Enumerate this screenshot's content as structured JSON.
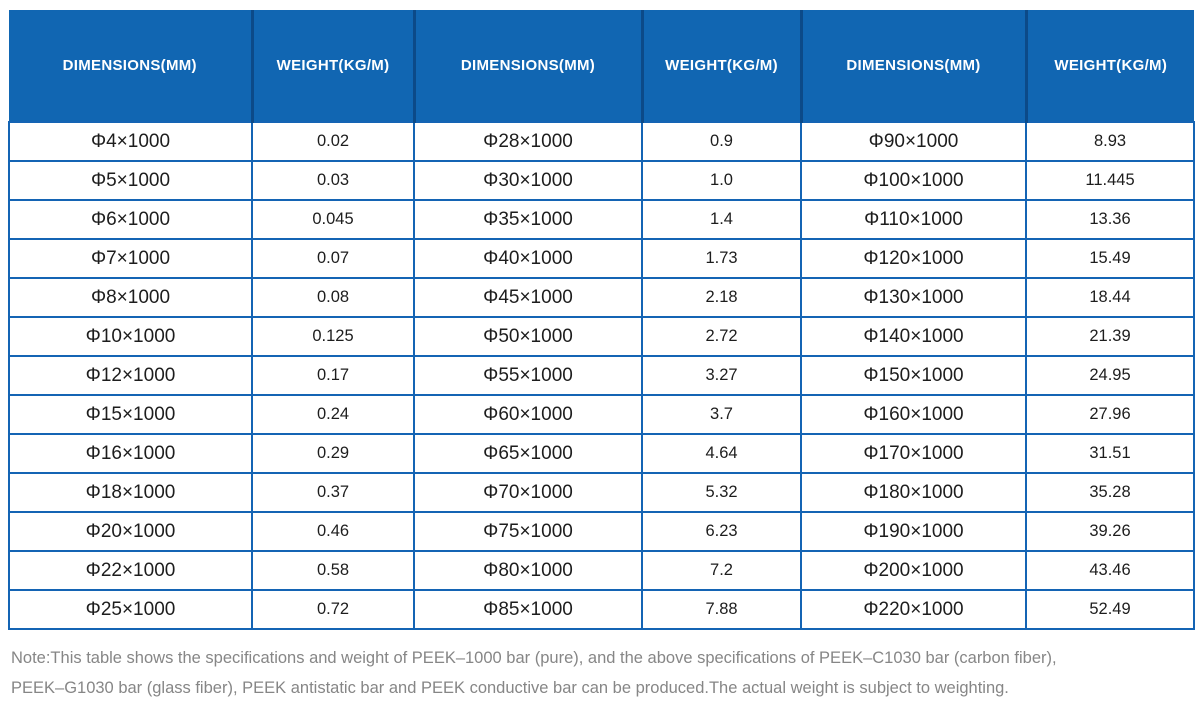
{
  "table": {
    "header": {
      "dimensions_label": "DIMENSIONS(MM)",
      "weight_label": "WEIGHT(KG/M)"
    },
    "rows": [
      [
        "Φ4×1000",
        "0.02",
        "Φ28×1000",
        "0.9",
        "Φ90×1000",
        "8.93"
      ],
      [
        "Φ5×1000",
        "0.03",
        "Φ30×1000",
        "1.0",
        "Φ100×1000",
        "11.445"
      ],
      [
        "Φ6×1000",
        "0.045",
        "Φ35×1000",
        "1.4",
        "Φ110×1000",
        "13.36"
      ],
      [
        "Φ7×1000",
        "0.07",
        "Φ40×1000",
        "1.73",
        "Φ120×1000",
        "15.49"
      ],
      [
        "Φ8×1000",
        "0.08",
        "Φ45×1000",
        "2.18",
        "Φ130×1000",
        "18.44"
      ],
      [
        "Φ10×1000",
        "0.125",
        "Φ50×1000",
        "2.72",
        "Φ140×1000",
        "21.39"
      ],
      [
        "Φ12×1000",
        "0.17",
        "Φ55×1000",
        "3.27",
        "Φ150×1000",
        "24.95"
      ],
      [
        "Φ15×1000",
        "0.24",
        "Φ60×1000",
        "3.7",
        "Φ160×1000",
        "27.96"
      ],
      [
        "Φ16×1000",
        "0.29",
        "Φ65×1000",
        "4.64",
        "Φ170×1000",
        "31.51"
      ],
      [
        "Φ18×1000",
        "0.37",
        "Φ70×1000",
        "5.32",
        "Φ180×1000",
        "35.28"
      ],
      [
        "Φ20×1000",
        "0.46",
        "Φ75×1000",
        "6.23",
        "Φ190×1000",
        "39.26"
      ],
      [
        "Φ22×1000",
        "0.58",
        "Φ80×1000",
        "7.2",
        "Φ200×1000",
        "43.46"
      ],
      [
        "Φ25×1000",
        "0.72",
        "Φ85×1000",
        "7.88",
        "Φ220×1000",
        "52.49"
      ]
    ]
  },
  "note": {
    "lines": [
      "Note:This table shows the specifications and weight of PEEK–1000 bar (pure), and the above specifications of PEEK–C1030 bar (carbon fiber),",
      "PEEK–G1030 bar (glass fiber), PEEK antistatic bar and PEEK conductive bar can be produced.The actual weight is subject to weighting."
    ]
  },
  "colors": {
    "header_bg": "#1166b2",
    "header_divider": "#0c4a88",
    "cell_border": "#1464b4",
    "body_text": "#1d1d1d",
    "note_text": "#868686"
  }
}
